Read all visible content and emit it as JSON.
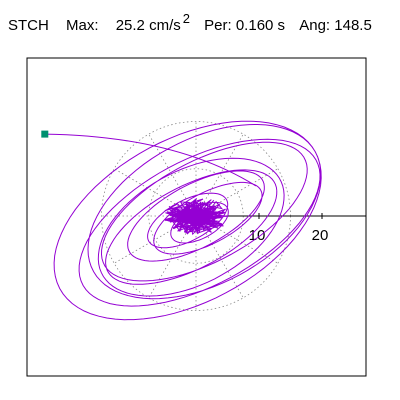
{
  "header": {
    "station": "STCH",
    "max_label": "Max:",
    "max_value": "25.2",
    "max_unit": "cm/s",
    "max_unit_exp": "2",
    "period_label": "Per:",
    "period_value": "0.160 s",
    "angle_label": "Ang:",
    "angle_value": "148.5"
  },
  "chart_data": {
    "type": "scatter",
    "subtype": "polar-particle-motion",
    "title": "STCH",
    "max_acceleration": 25.2,
    "max_unit": "cm/s2",
    "period_s": 0.16,
    "angle_deg": 148.5,
    "radial_ticks": [
      10,
      20
    ],
    "radial_tick_labels": [
      "10",
      "20"
    ],
    "grid": true,
    "grid_style": "dotted polar",
    "trace_color": "#9400d3",
    "marker_color": "#009070",
    "marker_point": [
      -24,
      13
    ]
  }
}
